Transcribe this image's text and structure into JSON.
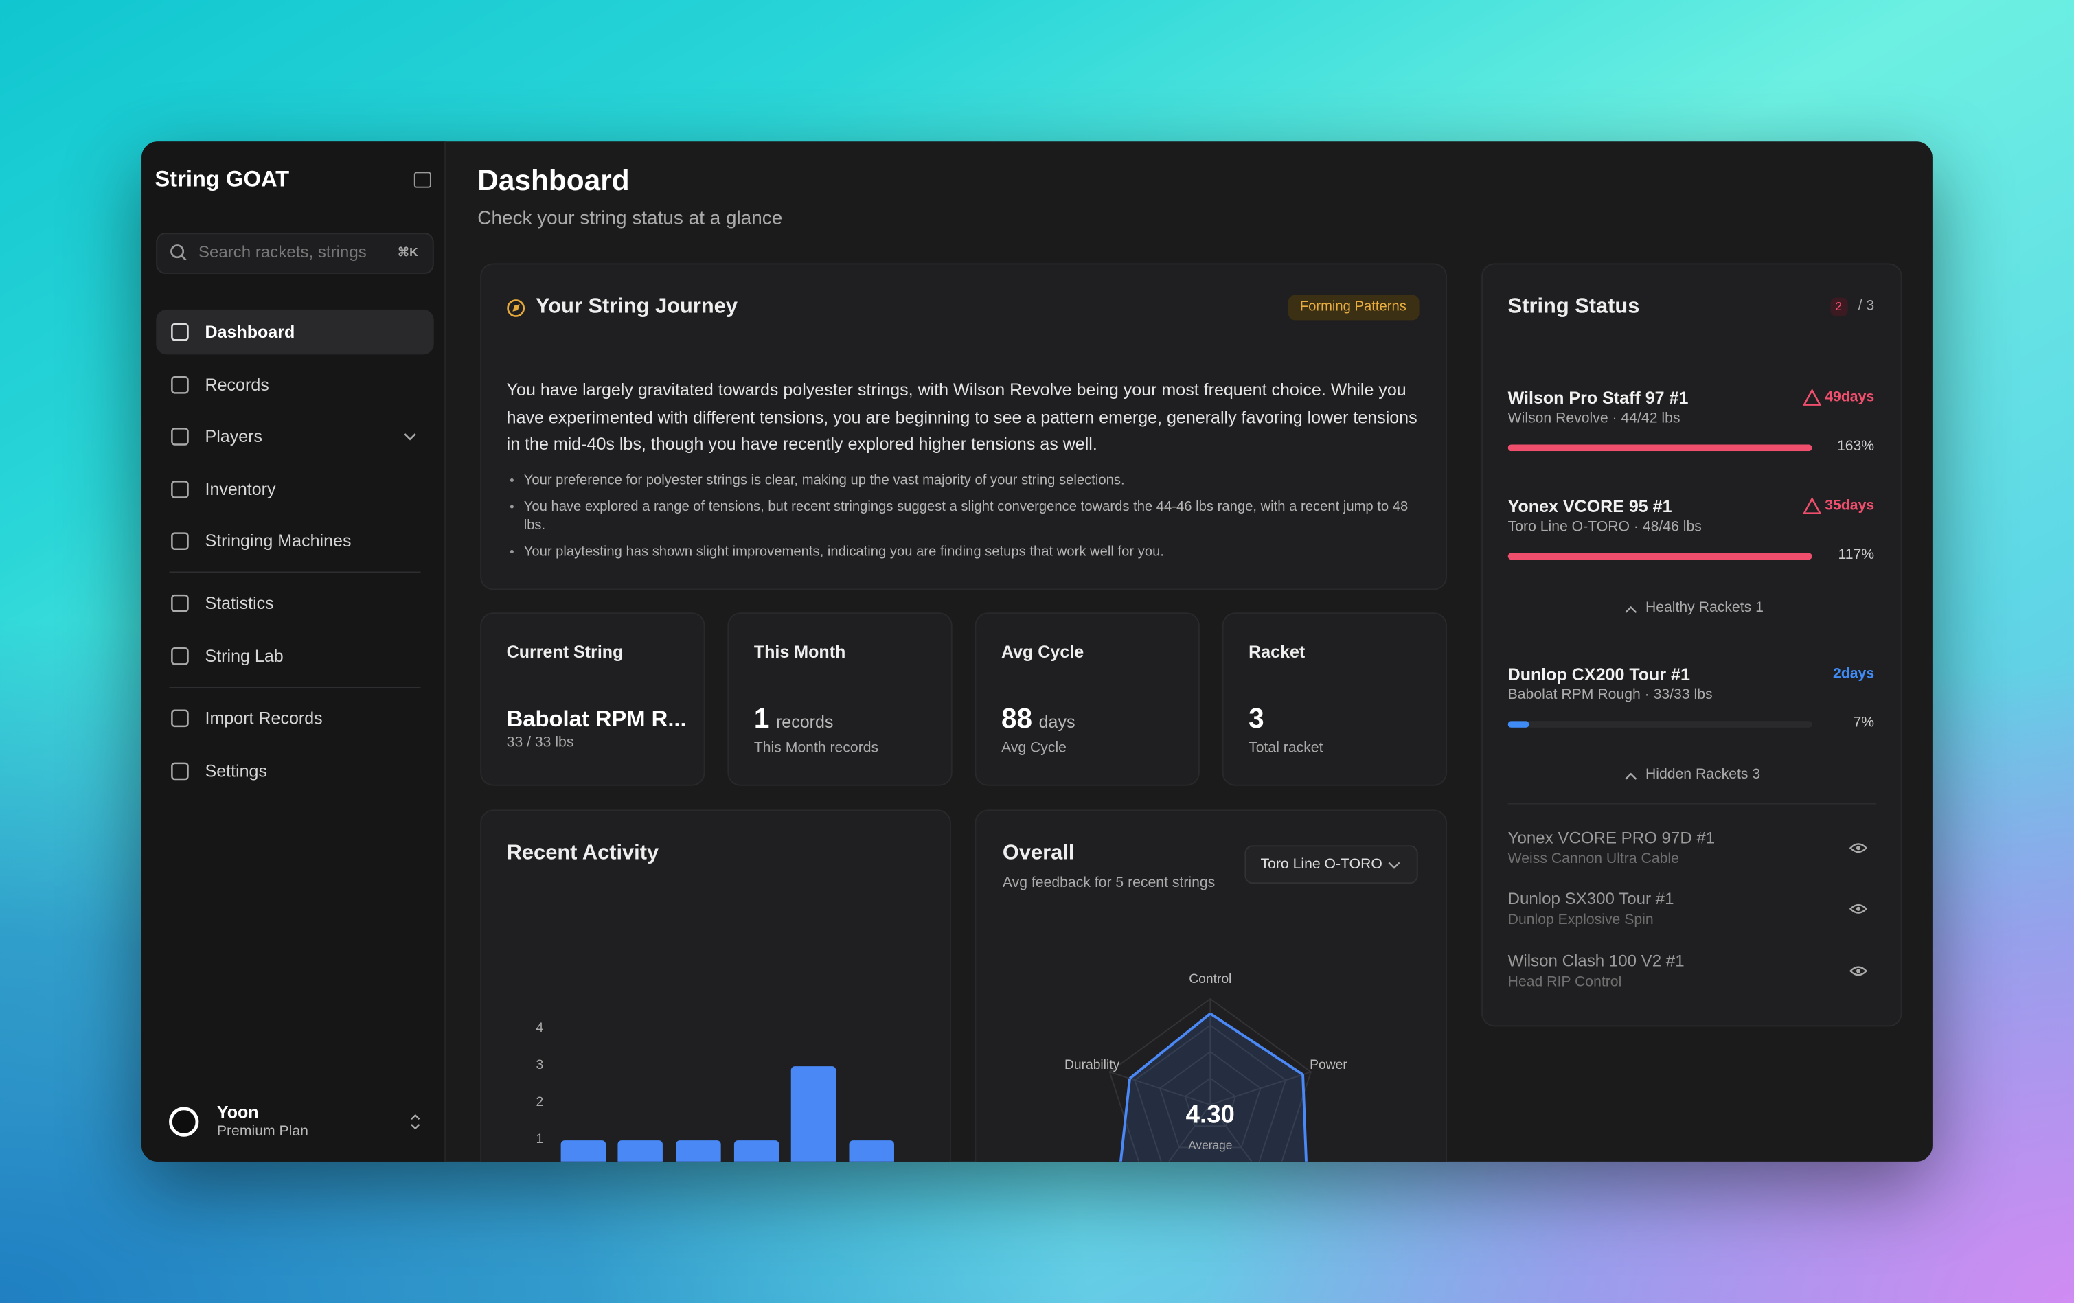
{
  "sidebar": {
    "app_name": "String GOAT",
    "search_placeholder": "Search rackets, strings",
    "search_shortcut": "⌘K",
    "nav": [
      "Dashboard",
      "Records",
      "Players",
      "Inventory",
      "Stringing Machines",
      "Statistics",
      "String Lab",
      "Import Records",
      "Settings"
    ],
    "user": {
      "name": "Yoon",
      "plan": "Premium Plan"
    }
  },
  "header": {
    "title": "Dashboard",
    "subtitle": "Check your string status at a glance"
  },
  "journey": {
    "title": "Your String Journey",
    "badge": "Forming Patterns",
    "summary": "You have largely gravitated towards polyester strings, with Wilson Revolve being your most frequent choice. While you have experimented with different tensions, you are beginning to see a pattern emerge, generally favoring lower tensions in the mid-40s lbs, though you have recently explored higher tensions as well.",
    "bullets": [
      "Your preference for polyester strings is clear, making up the vast majority of your string selections.",
      "You have explored a range of tensions, but recent stringings suggest a slight convergence towards the 44-46 lbs range, with a recent jump to 48 lbs.",
      "Your playtesting has shown slight improvements, indicating you are finding setups that work well for you."
    ]
  },
  "stats": [
    {
      "label": "Current String",
      "value": "Babolat RPM R...",
      "detail": "33 / 33 lbs"
    },
    {
      "label": "This Month",
      "value": 1,
      "unit": "records",
      "detail": "This Month records"
    },
    {
      "label": "Avg Cycle",
      "value": 88,
      "unit": "days",
      "detail": "Avg Cycle"
    },
    {
      "label": "Racket",
      "value": 3,
      "detail": "Total racket"
    }
  ],
  "chart_data": [
    {
      "type": "bar",
      "title": "Recent Activity",
      "categories": [
        null,
        null,
        null,
        null,
        null,
        null
      ],
      "values": [
        1,
        1,
        1,
        1,
        3,
        1
      ],
      "color": "#4a88f5",
      "ylim": [
        0,
        4
      ],
      "yticks": [
        1,
        2,
        3,
        4
      ]
    },
    {
      "type": "radar",
      "title": "Overall",
      "subtitle": "Avg feedback for 5 recent strings",
      "selector": "Toro Line O-TORO",
      "categories": [
        "Control",
        "Power",
        "Durability"
      ],
      "values": [
        4.3,
        4.6,
        4.0
      ],
      "color": "#4a88f5",
      "rlim": [
        0,
        5
      ],
      "center_value": {
        "value": 4.3,
        "label": "4.30"
      },
      "center_label": "Average"
    }
  ],
  "string_status": {
    "title": "String Status",
    "alert_count": 2,
    "total": "/ 3",
    "rackets": [
      {
        "name": "Wilson Pro Staff 97 #1",
        "detail": "Wilson Revolve · 44/42 lbs",
        "days": "49days",
        "percent": 163,
        "percent_label": "163%",
        "color": "#ef4f6c",
        "warning": true
      },
      {
        "name": "Yonex VCORE 95 #1",
        "detail": "Toro Line O-TORO · 48/46 lbs",
        "days": "35days",
        "percent": 117,
        "percent_label": "117%",
        "color": "#ef4f6c",
        "warning": true
      },
      {
        "name": "Dunlop CX200 Tour #1",
        "detail": "Babolat RPM Rough · 33/33 lbs",
        "days": "2days",
        "percent": 7,
        "percent_label": "7%",
        "color": "#3f8cf7",
        "warning": false
      }
    ],
    "healthy_toggle": "Healthy Rackets 1",
    "hidden_toggle": "Hidden Rackets 3",
    "hidden": [
      {
        "name": "Yonex VCORE PRO 97D #1",
        "detail": "Weiss Cannon Ultra Cable"
      },
      {
        "name": "Dunlop SX300 Tour #1",
        "detail": "Dunlop Explosive Spin"
      },
      {
        "name": "Wilson Clash 100 V2 #1",
        "detail": "Head RIP Control"
      }
    ]
  }
}
